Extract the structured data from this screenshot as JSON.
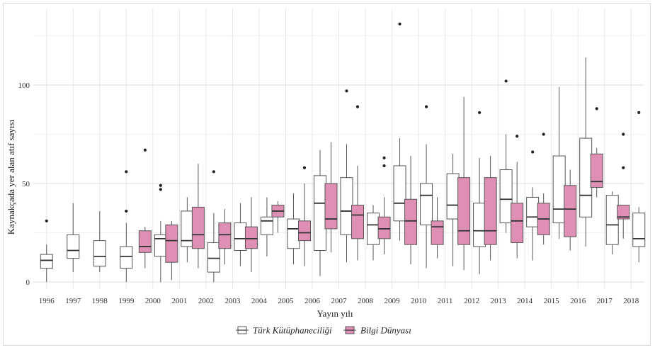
{
  "chart_data": {
    "type": "boxplot",
    "xlabel": "Yayın yılı",
    "ylabel": "Kaynakçada yer alan atıf sayısı",
    "ylim": [
      -3,
      135
    ],
    "yticks": [
      0,
      50,
      100
    ],
    "grid": true,
    "legend_position": "bottom",
    "categories": [
      "1996",
      "1997",
      "1998",
      "1999",
      "2000",
      "2001",
      "2002",
      "2003",
      "2004",
      "2005",
      "2006",
      "2007",
      "2008",
      "2009",
      "2010",
      "2011",
      "2012",
      "2013",
      "2014",
      "2015",
      "2016",
      "2017",
      "2018"
    ],
    "series": [
      {
        "name": "Türk Kütüphaneciliği",
        "color": "#ffffff",
        "boxes": [
          {
            "year": "1996",
            "min": 0,
            "q1": 7,
            "median": 11,
            "q3": 14,
            "max": 19,
            "outliers": [
              31
            ]
          },
          {
            "year": "1997",
            "min": 5,
            "q1": 12,
            "median": 16,
            "q3": 24,
            "max": 40,
            "outliers": []
          },
          {
            "year": "1998",
            "min": 5,
            "q1": 8,
            "median": 13,
            "q3": 21,
            "max": 36,
            "outliers": []
          },
          {
            "year": "1999",
            "min": 0,
            "q1": 7,
            "median": 13,
            "q3": 18,
            "max": 30,
            "outliers": [
              36,
              56
            ]
          },
          {
            "year": "2000",
            "min": 0,
            "q1": 13,
            "median": 22,
            "q3": 24,
            "max": 31,
            "outliers": [
              47,
              49
            ]
          },
          {
            "year": "2001",
            "min": 10,
            "q1": 18,
            "median": 21,
            "q3": 36,
            "max": 43,
            "outliers": []
          },
          {
            "year": "2002",
            "min": 0,
            "q1": 5,
            "median": 12,
            "q3": 20,
            "max": 35,
            "outliers": [
              56
            ]
          },
          {
            "year": "2003",
            "min": 8,
            "q1": 16,
            "median": 22,
            "q3": 30,
            "max": 40,
            "outliers": []
          },
          {
            "year": "2004",
            "min": 13,
            "q1": 24,
            "median": 31,
            "q3": 33,
            "max": 43,
            "outliers": []
          },
          {
            "year": "2005",
            "min": 9,
            "q1": 17,
            "median": 27,
            "q3": 32,
            "max": 45,
            "outliers": []
          },
          {
            "year": "2006",
            "min": 3,
            "q1": 16,
            "median": 40,
            "q3": 54,
            "max": 67,
            "outliers": []
          },
          {
            "year": "2007",
            "min": 10,
            "q1": 24,
            "median": 36,
            "q3": 53,
            "max": 70,
            "outliers": [
              97
            ]
          },
          {
            "year": "2008",
            "min": 11,
            "q1": 19,
            "median": 29,
            "q3": 35,
            "max": 39,
            "outliers": []
          },
          {
            "year": "2009",
            "min": 21,
            "q1": 31,
            "median": 40,
            "q3": 59,
            "max": 73,
            "outliers": [
              131
            ]
          },
          {
            "year": "2010",
            "min": 7,
            "q1": 29,
            "median": 44,
            "q3": 50,
            "max": 70,
            "outliers": [
              89
            ]
          },
          {
            "year": "2011",
            "min": 8,
            "q1": 32,
            "median": 39,
            "q3": 55,
            "max": 65,
            "outliers": []
          },
          {
            "year": "2012",
            "min": 4,
            "q1": 18,
            "median": 26,
            "q3": 40,
            "max": 63,
            "outliers": [
              86
            ]
          },
          {
            "year": "2013",
            "min": 25,
            "q1": 30,
            "median": 42,
            "q3": 57,
            "max": 75,
            "outliers": [
              102
            ]
          },
          {
            "year": "2014",
            "min": 11,
            "q1": 28,
            "median": 33,
            "q3": 43,
            "max": 48,
            "outliers": [
              66
            ]
          },
          {
            "year": "2015",
            "min": 22,
            "q1": 30,
            "median": 37,
            "q3": 64,
            "max": 99,
            "outliers": []
          },
          {
            "year": "2016",
            "min": 18,
            "q1": 33,
            "median": 44,
            "q3": 73,
            "max": 114,
            "outliers": []
          },
          {
            "year": "2017",
            "min": 14,
            "q1": 19,
            "median": 29,
            "q3": 44,
            "max": 46,
            "outliers": []
          },
          {
            "year": "2018",
            "min": 10,
            "q1": 18,
            "median": 22,
            "q3": 35,
            "max": 38,
            "outliers": [
              86
            ]
          }
        ]
      },
      {
        "name": "Bilgi Dünyası",
        "color": "#de8fb3",
        "boxes": [
          {
            "year": "2000",
            "min": 7,
            "q1": 15,
            "median": 18,
            "q3": 26,
            "max": 28,
            "outliers": [
              67
            ]
          },
          {
            "year": "2001",
            "min": 1,
            "q1": 10,
            "median": 21,
            "q3": 29,
            "max": 31,
            "outliers": []
          },
          {
            "year": "2002",
            "min": 7,
            "q1": 17,
            "median": 24,
            "q3": 38,
            "max": 60,
            "outliers": []
          },
          {
            "year": "2003",
            "min": 9,
            "q1": 17,
            "median": 24,
            "q3": 30,
            "max": 37,
            "outliers": []
          },
          {
            "year": "2004",
            "min": 5,
            "q1": 17,
            "median": 22,
            "q3": 28,
            "max": 43,
            "outliers": []
          },
          {
            "year": "2005",
            "min": 25,
            "q1": 33,
            "median": 36,
            "q3": 39,
            "max": 41,
            "outliers": []
          },
          {
            "year": "2006",
            "min": 8,
            "q1": 21,
            "median": 25,
            "q3": 31,
            "max": 50,
            "outliers": [
              58
            ]
          },
          {
            "year": "2007",
            "min": 15,
            "q1": 27,
            "median": 32,
            "q3": 50,
            "max": 71,
            "outliers": []
          },
          {
            "year": "2008",
            "min": 11,
            "q1": 22,
            "median": 34,
            "q3": 39,
            "max": 59,
            "outliers": [
              89
            ]
          },
          {
            "year": "2009",
            "min": 14,
            "q1": 22,
            "median": 27,
            "q3": 33,
            "max": 43,
            "outliers": [
              59,
              63
            ]
          },
          {
            "year": "2010",
            "min": 9,
            "q1": 19,
            "median": 31,
            "q3": 42,
            "max": 64,
            "outliers": []
          },
          {
            "year": "2011",
            "min": 12,
            "q1": 19,
            "median": 28,
            "q3": 31,
            "max": 43,
            "outliers": []
          },
          {
            "year": "2012",
            "min": 6,
            "q1": 19,
            "median": 26,
            "q3": 53,
            "max": 94,
            "outliers": []
          },
          {
            "year": "2013",
            "min": 11,
            "q1": 19,
            "median": 26,
            "q3": 53,
            "max": 64,
            "outliers": []
          },
          {
            "year": "2014",
            "min": 12,
            "q1": 20,
            "median": 31,
            "q3": 40,
            "max": 61,
            "outliers": [
              74
            ]
          },
          {
            "year": "2015",
            "min": 19,
            "q1": 24,
            "median": 32,
            "q3": 40,
            "max": 45,
            "outliers": [
              75
            ]
          },
          {
            "year": "2016",
            "min": 16,
            "q1": 23,
            "median": 37,
            "q3": 49,
            "max": 57,
            "outliers": []
          },
          {
            "year": "2017",
            "min": 43,
            "q1": 48,
            "median": 51,
            "q3": 65,
            "max": 68,
            "outliers": [
              88
            ]
          },
          {
            "year": "2018",
            "min": 22,
            "q1": 32,
            "median": 33,
            "q3": 39,
            "max": 39,
            "outliers": [
              58,
              75
            ]
          }
        ]
      }
    ]
  }
}
